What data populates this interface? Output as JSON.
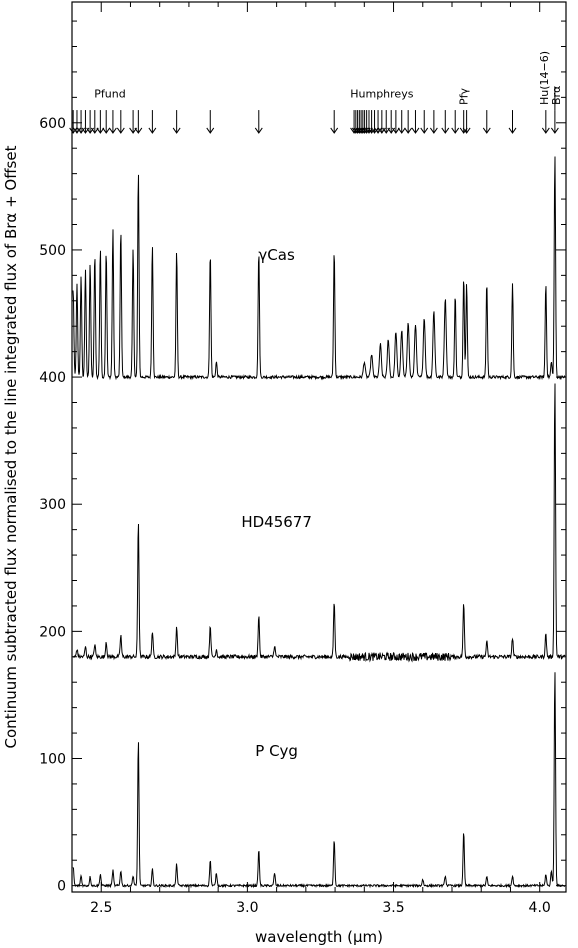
{
  "chart_data": {
    "type": "line",
    "xlabel": "wavelength (μm)",
    "ylabel": "Continuum subtracted flux normalised to the line integrated flux of Brα + Offset",
    "xlim": [
      2.4,
      4.09
    ],
    "ylim": [
      -5,
      695
    ],
    "x_ticks": [
      2.5,
      3.0,
      3.5,
      4.0
    ],
    "x_tick_labels": [
      "2.5",
      "3.0",
      "3.5",
      "4.0"
    ],
    "y_ticks": [
      0,
      100,
      200,
      300,
      400,
      500,
      600
    ],
    "y_tick_labels": [
      "0",
      "100",
      "200",
      "300",
      "400",
      "500",
      "600"
    ],
    "series_labels": [
      {
        "name": "γCas",
        "x": 3.1,
        "y": 492
      },
      {
        "name": "HD45677",
        "x": 3.1,
        "y": 282
      },
      {
        "name": "P Cyg",
        "x": 3.1,
        "y": 102
      }
    ],
    "series": [
      {
        "name": "γCas",
        "baseline": 400,
        "lines": [
          [
            2.404,
            470
          ],
          [
            2.417,
            473
          ],
          [
            2.431,
            480
          ],
          [
            2.446,
            485
          ],
          [
            2.462,
            490
          ],
          [
            2.478,
            497
          ],
          [
            2.497,
            502
          ],
          [
            2.517,
            500
          ],
          [
            2.54,
            517
          ],
          [
            2.567,
            517
          ],
          [
            2.609,
            501
          ],
          [
            2.627,
            562
          ],
          [
            2.675,
            504
          ],
          [
            2.758,
            499
          ],
          [
            2.873,
            498
          ],
          [
            2.894,
            412
          ],
          [
            3.039,
            500
          ],
          [
            3.297,
            500
          ],
          [
            3.4,
            412
          ],
          [
            3.425,
            418
          ],
          [
            3.455,
            426
          ],
          [
            3.482,
            430
          ],
          [
            3.508,
            436
          ],
          [
            3.528,
            437
          ],
          [
            3.55,
            444
          ],
          [
            3.575,
            442
          ],
          [
            3.605,
            447
          ],
          [
            3.638,
            452
          ],
          [
            3.677,
            462
          ],
          [
            3.711,
            466
          ],
          [
            3.74,
            479
          ],
          [
            3.75,
            474
          ],
          [
            3.819,
            475
          ],
          [
            3.907,
            474
          ],
          [
            4.021,
            474
          ],
          [
            4.04,
            412
          ],
          [
            4.052,
            576
          ]
        ]
      },
      {
        "name": "HD45677",
        "baseline": 180,
        "lines": [
          [
            2.417,
            186
          ],
          [
            2.446,
            188
          ],
          [
            2.478,
            190
          ],
          [
            2.517,
            192
          ],
          [
            2.567,
            197
          ],
          [
            2.627,
            288
          ],
          [
            2.675,
            200
          ],
          [
            2.758,
            204
          ],
          [
            2.873,
            205
          ],
          [
            2.894,
            186
          ],
          [
            3.039,
            213
          ],
          [
            3.093,
            189
          ],
          [
            3.297,
            224
          ],
          [
            3.74,
            222
          ],
          [
            3.819,
            192
          ],
          [
            3.907,
            195
          ],
          [
            4.021,
            198
          ],
          [
            4.052,
            398
          ]
        ]
      },
      {
        "name": "P Cyg",
        "baseline": 0,
        "lines": [
          [
            2.404,
            15
          ],
          [
            2.431,
            8
          ],
          [
            2.462,
            7
          ],
          [
            2.497,
            9
          ],
          [
            2.54,
            12
          ],
          [
            2.567,
            12
          ],
          [
            2.609,
            8
          ],
          [
            2.627,
            115
          ],
          [
            2.675,
            13
          ],
          [
            2.758,
            17
          ],
          [
            2.873,
            20
          ],
          [
            2.894,
            10
          ],
          [
            3.039,
            28
          ],
          [
            3.093,
            10
          ],
          [
            3.297,
            37
          ],
          [
            3.6,
            5
          ],
          [
            3.677,
            8
          ],
          [
            3.74,
            42
          ],
          [
            3.819,
            7
          ],
          [
            3.907,
            8
          ],
          [
            4.021,
            9
          ],
          [
            4.04,
            12
          ],
          [
            4.052,
            170
          ]
        ]
      }
    ],
    "line_markers": {
      "pfund_label": "Pfund",
      "humphreys_label": "Humphreys",
      "pfgamma_label": "Pfγ",
      "hu146_label": "Hu(14−6)",
      "bralpha_label": "Brα",
      "pfund_x": [
        2.404,
        2.417,
        2.431,
        2.446,
        2.462,
        2.478,
        2.497,
        2.517,
        2.54,
        2.567,
        2.609,
        2.627,
        2.675,
        2.758,
        2.873,
        3.039,
        3.297
      ],
      "humphreys_x": [
        3.365,
        3.371,
        3.377,
        3.383,
        3.389,
        3.395,
        3.401,
        3.408,
        3.416,
        3.425,
        3.435,
        3.447,
        3.46,
        3.475,
        3.492,
        3.508,
        3.528,
        3.55,
        3.575,
        3.605,
        3.638,
        3.677,
        3.711,
        3.75,
        3.819,
        3.907,
        4.021
      ],
      "pfgamma_x": 3.74,
      "bralpha_x": 4.052
    }
  }
}
